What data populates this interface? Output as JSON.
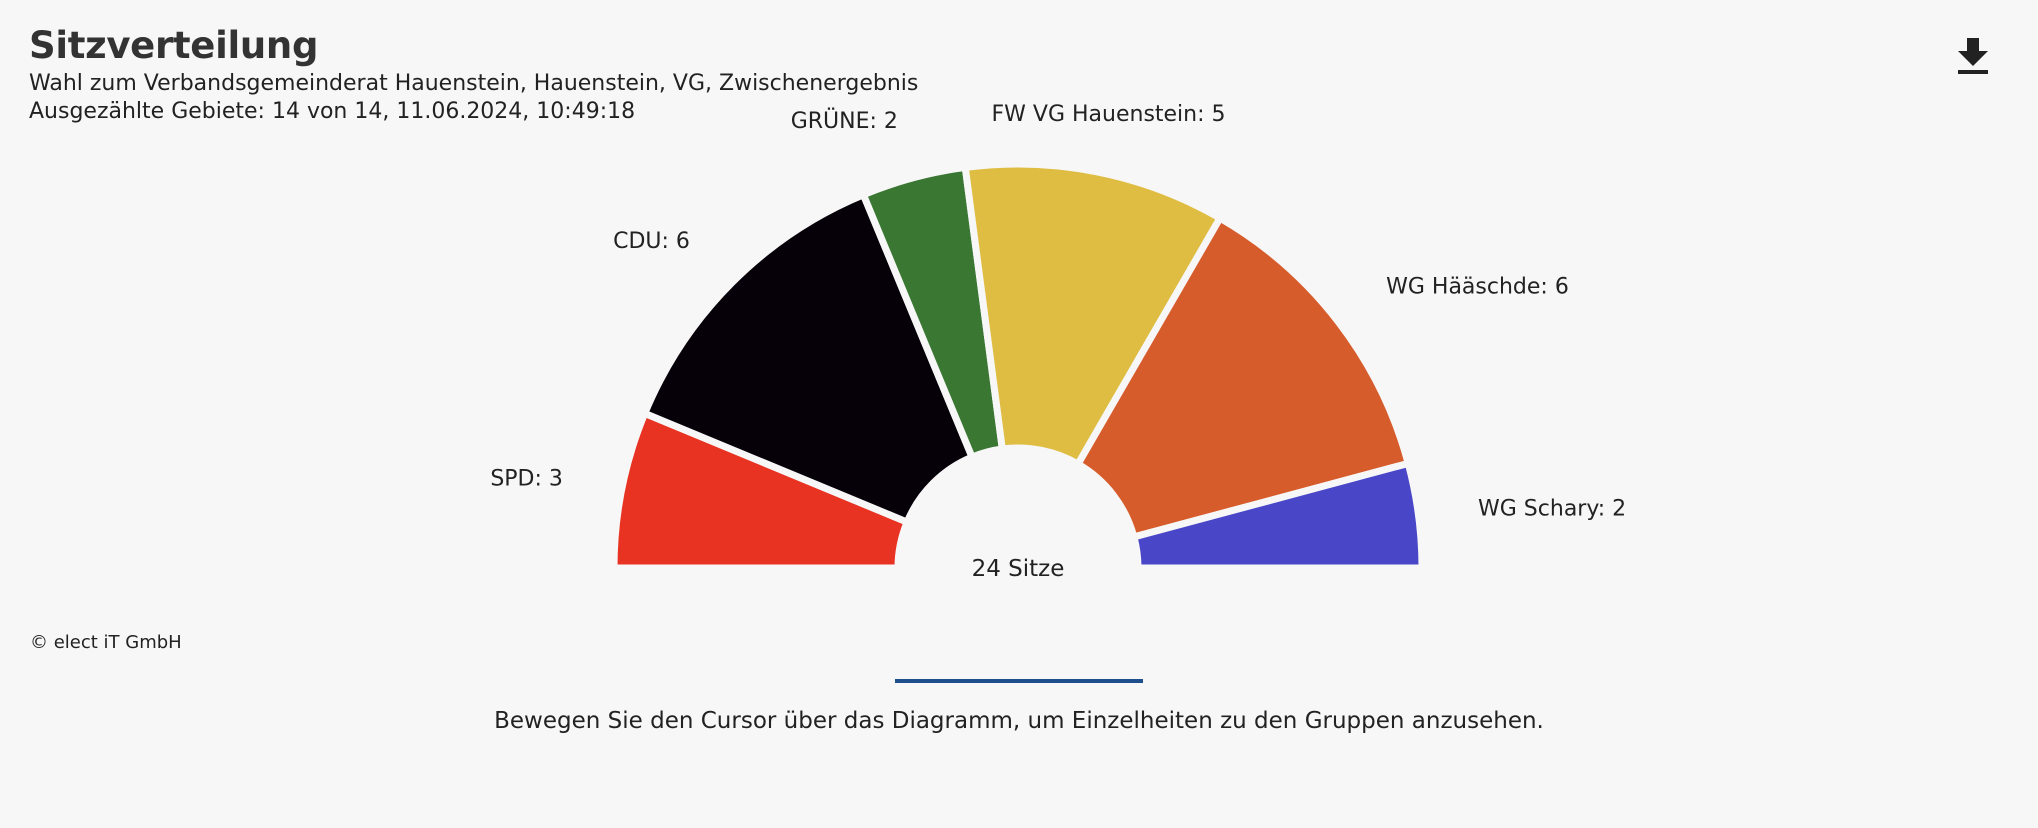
{
  "header": {
    "title": "Sitzverteilung",
    "subtitle": "Wahl zum Verbandsgemeinderat Hauenstein, Hauenstein, VG, Zwischenergebnis",
    "status": "Ausgezählte Gebiete: 14 von 14, 11.06.2024, 10:49:18"
  },
  "toolbar": {
    "download_icon": "download-icon"
  },
  "footer": {
    "copyright": "© elect iT GmbH",
    "hint": "Bewegen Sie den Cursor über das Diagramm, um Einzelheiten zu den Gruppen anzusehen."
  },
  "chart_data": {
    "type": "pie",
    "variant": "semicircle-parliament",
    "center_label": "24 Sitze",
    "total": 24,
    "series": [
      {
        "name": "SPD",
        "value": 3,
        "label": "SPD: 3",
        "color": "#e83323"
      },
      {
        "name": "CDU",
        "value": 6,
        "label": "CDU: 6",
        "color": "#060108"
      },
      {
        "name": "GRÜNE",
        "value": 2,
        "label": "GRÜNE: 2",
        "color": "#3a7732"
      },
      {
        "name": "FW VG Hauenstein",
        "value": 5,
        "label": "FW VG Hauenstein: 5",
        "color": "#dfbd43"
      },
      {
        "name": "WG Hääschde",
        "value": 6,
        "label": "WG Hääschde: 6",
        "color": "#d75c2c"
      },
      {
        "name": "WG Schary",
        "value": 2,
        "label": "WG Schary: 2",
        "color": "#4947c8"
      }
    ]
  }
}
